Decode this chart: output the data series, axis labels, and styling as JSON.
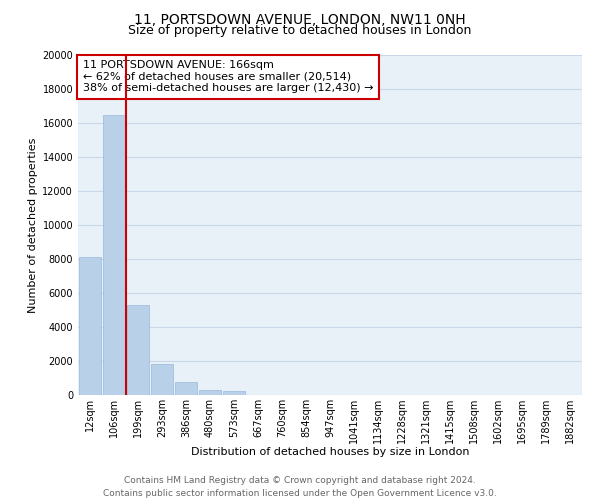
{
  "title": "11, PORTSDOWN AVENUE, LONDON, NW11 0NH",
  "subtitle": "Size of property relative to detached houses in London",
  "bar_categories": [
    "12sqm",
    "106sqm",
    "199sqm",
    "293sqm",
    "386sqm",
    "480sqm",
    "573sqm",
    "667sqm",
    "760sqm",
    "854sqm",
    "947sqm",
    "1041sqm",
    "1134sqm",
    "1228sqm",
    "1321sqm",
    "1415sqm",
    "1508sqm",
    "1602sqm",
    "1695sqm",
    "1789sqm",
    "1882sqm"
  ],
  "bar_values": [
    8100,
    16500,
    5300,
    1800,
    750,
    280,
    230,
    0,
    0,
    0,
    0,
    0,
    0,
    0,
    0,
    0,
    0,
    0,
    0,
    0,
    0
  ],
  "bar_color": "#b8d0e8",
  "bar_edge_color": "#9ab8d8",
  "property_line_color": "#cc0000",
  "property_line_x": 1.5,
  "annotation_text": "11 PORTSDOWN AVENUE: 166sqm\n← 62% of detached houses are smaller (20,514)\n38% of semi-detached houses are larger (12,430) →",
  "annotation_box_color": "#ffffff",
  "annotation_box_edge": "#cc0000",
  "xlabel": "Distribution of detached houses by size in London",
  "ylabel": "Number of detached properties",
  "ylim": [
    0,
    20000
  ],
  "yticks": [
    0,
    2000,
    4000,
    6000,
    8000,
    10000,
    12000,
    14000,
    16000,
    18000,
    20000
  ],
  "grid_color": "#c8d8e8",
  "bg_color": "#e8f0f8",
  "footer_line1": "Contains HM Land Registry data © Crown copyright and database right 2024.",
  "footer_line2": "Contains public sector information licensed under the Open Government Licence v3.0.",
  "title_fontsize": 10,
  "subtitle_fontsize": 9,
  "axis_label_fontsize": 8,
  "tick_fontsize": 7,
  "annotation_fontsize": 8,
  "footer_fontsize": 6.5
}
